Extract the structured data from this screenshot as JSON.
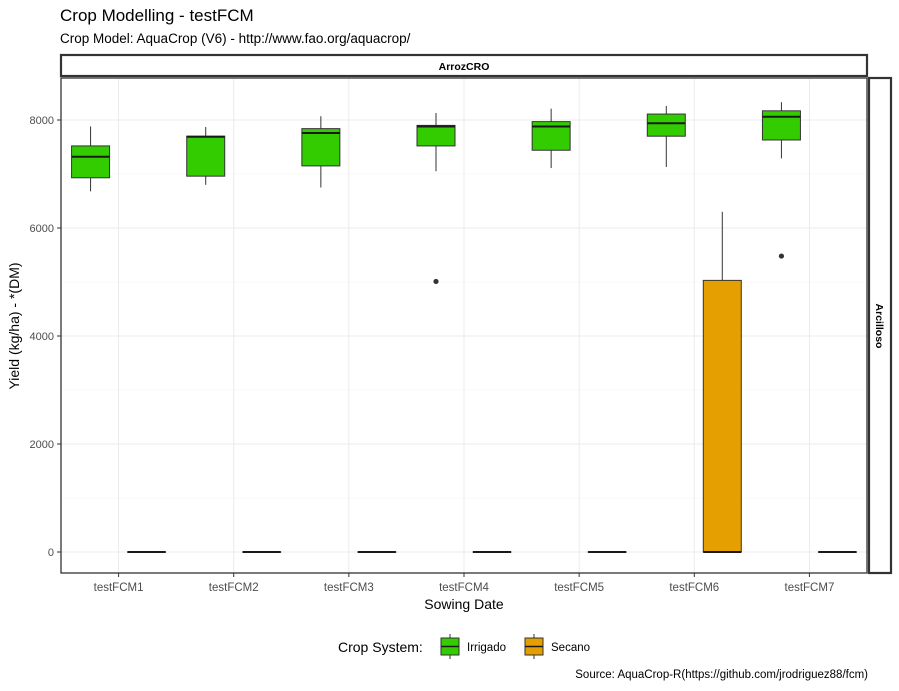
{
  "title": "Crop Modelling - testFCM",
  "subtitle": "Crop Model: AquaCrop (V6) - http://www.fao.org/aquacrop/",
  "caption": "Source: AquaCrop-R(https://github.com/jrodriguez88/fcm)",
  "chart_data": {
    "type": "box",
    "facet_top": "ArrozCRO",
    "facet_right": "Arcilloso",
    "xlabel": "Sowing Date",
    "ylabel": "Yield (kg/ha) - *(DM)",
    "ylim": [
      -400,
      8800
    ],
    "yticks": [
      0,
      2000,
      4000,
      6000,
      8000
    ],
    "grid": true,
    "legend_title": "Crop System:",
    "legend_position": "bottom",
    "categories": [
      "testFCM1",
      "testFCM2",
      "testFCM3",
      "testFCM4",
      "testFCM5",
      "testFCM6",
      "testFCM7"
    ],
    "series": [
      {
        "name": "Irrigado",
        "color": "#33cc00",
        "boxes": [
          {
            "min": 6680,
            "q1": 6930,
            "median": 7320,
            "q3": 7520,
            "max": 7880,
            "outliers": []
          },
          {
            "min": 6800,
            "q1": 6960,
            "median": 7690,
            "q3": 7700,
            "max": 7870,
            "outliers": []
          },
          {
            "min": 6750,
            "q1": 7150,
            "median": 7760,
            "q3": 7840,
            "max": 8070,
            "outliers": []
          },
          {
            "min": 7050,
            "q1": 7520,
            "median": 7880,
            "q3": 7900,
            "max": 8130,
            "outliers": [
              5010
            ]
          },
          {
            "min": 7110,
            "q1": 7440,
            "median": 7880,
            "q3": 7970,
            "max": 8210,
            "outliers": []
          },
          {
            "min": 7130,
            "q1": 7700,
            "median": 7940,
            "q3": 8110,
            "max": 8260,
            "outliers": []
          },
          {
            "min": 7290,
            "q1": 7630,
            "median": 8060,
            "q3": 8170,
            "max": 8330,
            "outliers": [
              5480
            ]
          }
        ]
      },
      {
        "name": "Secano",
        "color": "#e69f00",
        "boxes": [
          {
            "min": 0,
            "q1": 0,
            "median": 0,
            "q3": 0,
            "max": 0,
            "outliers": []
          },
          {
            "min": 0,
            "q1": 0,
            "median": 0,
            "q3": 0,
            "max": 0,
            "outliers": []
          },
          {
            "min": 0,
            "q1": 0,
            "median": 0,
            "q3": 0,
            "max": 0,
            "outliers": []
          },
          {
            "min": 0,
            "q1": 0,
            "median": 0,
            "q3": 0,
            "max": 0,
            "outliers": []
          },
          {
            "min": 0,
            "q1": 0,
            "median": 0,
            "q3": 0,
            "max": 0,
            "outliers": []
          },
          {
            "min": 0,
            "q1": 0,
            "median": 0,
            "q3": 5030,
            "max": 6300,
            "outliers": []
          },
          {
            "min": 0,
            "q1": 0,
            "median": 0,
            "q3": 0,
            "max": 0,
            "outliers": []
          }
        ]
      }
    ]
  }
}
